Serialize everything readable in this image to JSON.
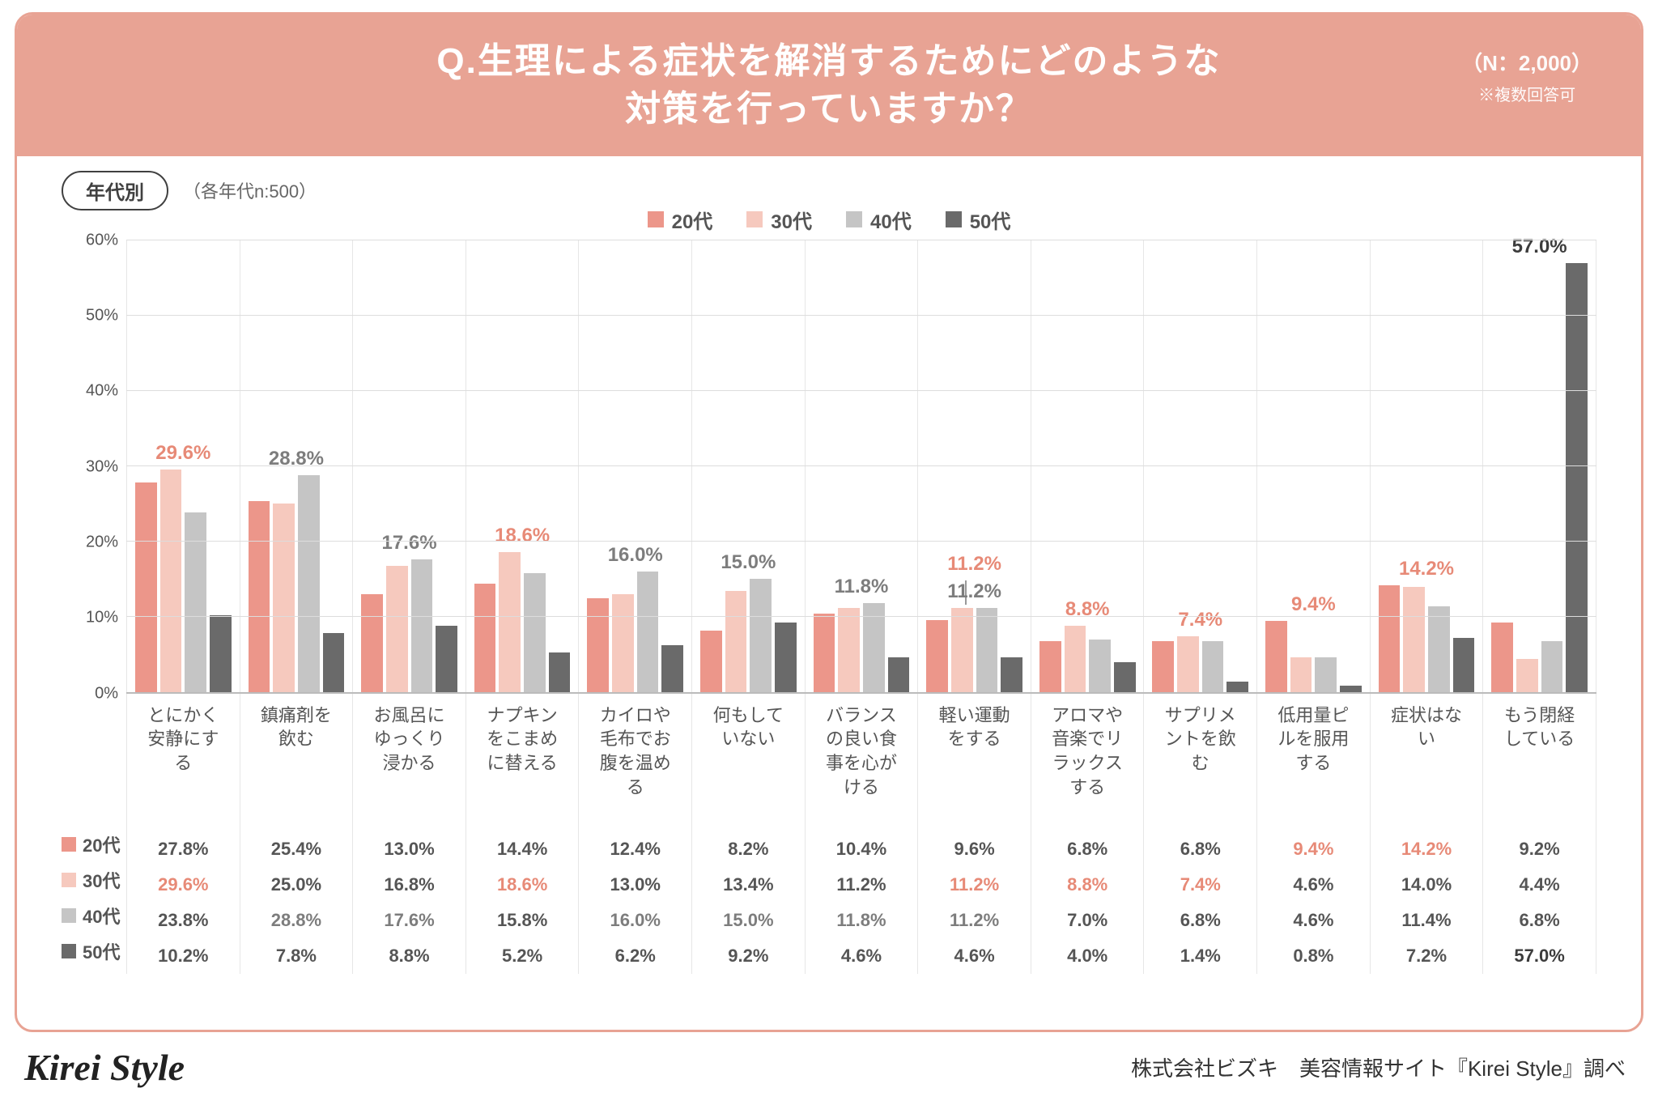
{
  "colors": {
    "frame": "#e8a394",
    "series": [
      "#ec968a",
      "#f6c9be",
      "#c5c5c5",
      "#6a6a6a"
    ],
    "grid": "#dddddd",
    "text": "#555555",
    "hl_salmon": "#e78a77",
    "hl_gray": "#7d7d7d",
    "hl_dark": "#3c3c3c"
  },
  "header": {
    "title_l1": "Q.生理による症状を解消するためにどのような",
    "title_l2": "対策を行っていますか？",
    "n_note": "（N：2,000）",
    "multi_note": "※複数回答可"
  },
  "sub": {
    "pill": "年代別",
    "note": "（各年代n:500）"
  },
  "legend": [
    "20代",
    "30代",
    "40代",
    "50代"
  ],
  "chart": {
    "ymax": 60,
    "ytick_step": 10,
    "ytick_suffix": "%",
    "categories": [
      "とにかく\n安静にす\nる",
      "鎮痛剤を\n飲む",
      "お風呂に\nゆっくり\n浸かる",
      "ナプキン\nをこまめ\nに替える",
      "カイロや\n毛布でお\n腹を温め\nる",
      "何もして\nいない",
      "バランス\nの良い食\n事を心が\nける",
      "軽い運動\nをする",
      "アロマや\n音楽でリ\nラックス\nする",
      "サプリメ\nントを飲\nむ",
      "低用量ピ\nルを服用\nする",
      "症状はな\nい",
      "もう閉経\nしている"
    ],
    "series": [
      {
        "name": "20代",
        "values": [
          27.8,
          25.4,
          13.0,
          14.4,
          12.4,
          8.2,
          10.4,
          9.6,
          6.8,
          6.8,
          9.4,
          14.2,
          9.2
        ]
      },
      {
        "name": "30代",
        "values": [
          29.6,
          25.0,
          16.8,
          18.6,
          13.0,
          13.4,
          11.2,
          11.2,
          8.8,
          7.4,
          4.6,
          14.0,
          4.4
        ]
      },
      {
        "name": "40代",
        "values": [
          23.8,
          28.8,
          17.6,
          15.8,
          16.0,
          15.0,
          11.8,
          11.2,
          7.0,
          6.8,
          4.6,
          11.4,
          6.8
        ]
      },
      {
        "name": "50代",
        "values": [
          10.2,
          7.8,
          8.8,
          5.2,
          6.2,
          9.2,
          4.6,
          4.6,
          4.0,
          1.4,
          0.8,
          7.2,
          57.0
        ]
      }
    ],
    "top_labels": [
      {
        "cat": 0,
        "text": "29.6%",
        "color": "salmon",
        "value": 29.6,
        "bar_idx": 1
      },
      {
        "cat": 1,
        "text": "28.8%",
        "color": "gray",
        "value": 28.8,
        "bar_idx": 2
      },
      {
        "cat": 2,
        "text": "17.6%",
        "color": "gray",
        "value": 17.6,
        "bar_idx": 2
      },
      {
        "cat": 3,
        "text": "18.6%",
        "color": "salmon",
        "value": 18.6,
        "bar_idx": 1
      },
      {
        "cat": 4,
        "text": "16.0%",
        "color": "gray",
        "value": 16.0,
        "bar_idx": 2
      },
      {
        "cat": 5,
        "text": "15.0%",
        "color": "gray",
        "value": 15.0,
        "bar_idx": 2
      },
      {
        "cat": 6,
        "text": "11.8%",
        "color": "gray",
        "value": 11.8,
        "bar_idx": 2
      },
      {
        "cat": 7,
        "text": "11.2%",
        "color": "salmon",
        "value": 11.2,
        "bar_idx": 1,
        "offset_y": -34,
        "leader": true
      },
      {
        "cat": 7,
        "text": "11.2%",
        "color": "gray",
        "value": 11.2,
        "bar_idx": 2
      },
      {
        "cat": 8,
        "text": "8.8%",
        "color": "salmon",
        "value": 8.8,
        "bar_idx": 1
      },
      {
        "cat": 9,
        "text": "7.4%",
        "color": "salmon",
        "value": 7.4,
        "bar_idx": 1
      },
      {
        "cat": 10,
        "text": "9.4%",
        "color": "salmon",
        "value": 9.4,
        "bar_idx": 0
      },
      {
        "cat": 11,
        "text": "14.2%",
        "color": "salmon",
        "value": 14.2,
        "bar_idx": 0
      },
      {
        "cat": 12,
        "text": "57.0%",
        "color": "dark",
        "value": 57.0,
        "bar_idx": 3
      }
    ]
  },
  "table": {
    "row_labels": [
      "20代",
      "30代",
      "40代",
      "50代"
    ],
    "highlights": {
      "0": {
        "10": "salmon",
        "11": "salmon"
      },
      "1": {
        "0": "salmon",
        "3": "salmon",
        "7": "salmon",
        "8": "salmon",
        "9": "salmon"
      },
      "2": {
        "1": "gray",
        "2": "gray",
        "4": "gray",
        "5": "gray",
        "6": "gray",
        "7": "gray"
      },
      "3": {
        "12": "dark"
      }
    }
  },
  "footer": {
    "logo": "Kirei Style",
    "credit": "株式会社ビズキ　美容情報サイト『Kirei Style』調べ"
  }
}
